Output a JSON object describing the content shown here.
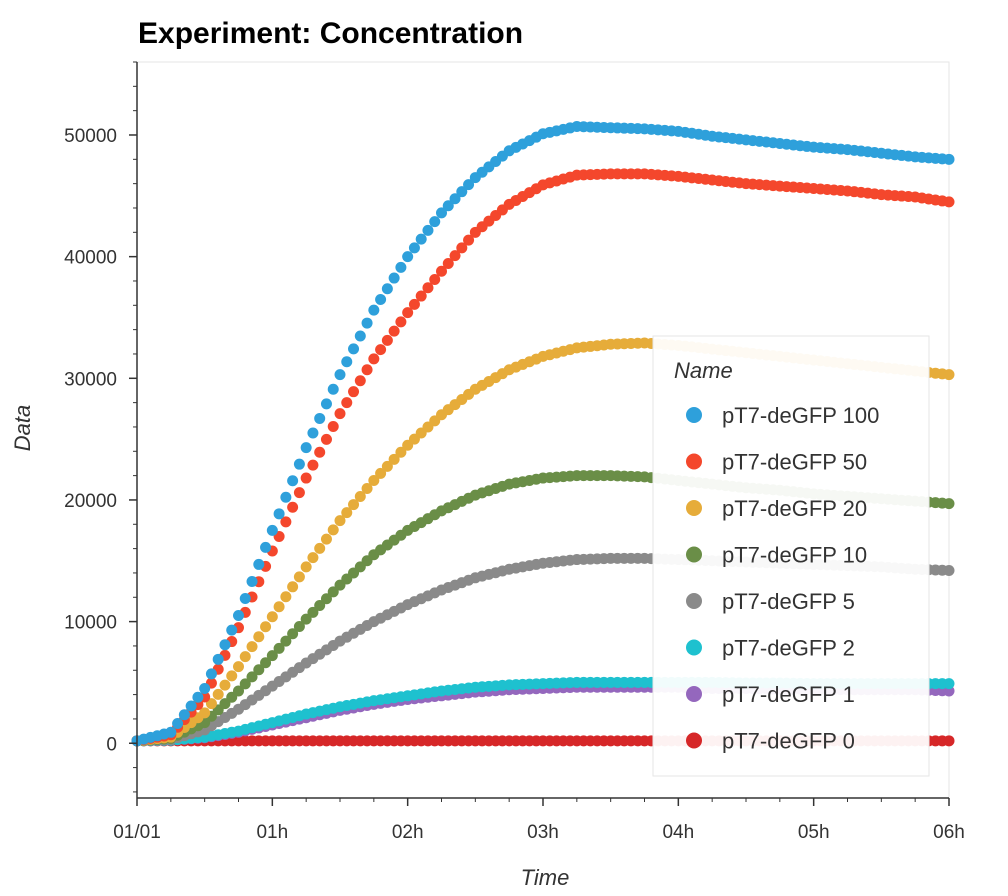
{
  "chart_data": {
    "type": "scatter",
    "title": "Experiment: Concentration",
    "xlabel": "Time",
    "ylabel": "Data",
    "x_unit": "hours",
    "x_ticks": [
      {
        "value": 0,
        "label": "01/01"
      },
      {
        "value": 1,
        "label": "01h"
      },
      {
        "value": 2,
        "label": "02h"
      },
      {
        "value": 3,
        "label": "03h"
      },
      {
        "value": 4,
        "label": "04h"
      },
      {
        "value": 5,
        "label": "05h"
      },
      {
        "value": 6,
        "label": "06h"
      }
    ],
    "y_ticks": [
      0,
      10000,
      20000,
      30000,
      40000,
      50000
    ],
    "xlim": [
      0,
      6
    ],
    "ylim": [
      -4500,
      56000
    ],
    "grid": false,
    "legend": {
      "title": "Name",
      "placement": "lower-right"
    },
    "series": [
      {
        "name": "pT7-deGFP 100",
        "color": "#2ea0db",
        "x": [
          0,
          0.25,
          0.5,
          0.75,
          1,
          1.25,
          1.5,
          1.75,
          2,
          2.25,
          2.5,
          2.75,
          3,
          3.25,
          3.5,
          3.75,
          4,
          4.25,
          4.5,
          4.75,
          5,
          5.25,
          5.5,
          5.75,
          6
        ],
        "y": [
          200,
          900,
          4500,
          10500,
          17500,
          24300,
          30300,
          35600,
          40000,
          43600,
          46500,
          48700,
          50100,
          50700,
          50600,
          50500,
          50300,
          49900,
          49600,
          49300,
          49000,
          48800,
          48500,
          48200,
          48000
        ]
      },
      {
        "name": "pT7-deGFP 50",
        "color": "#f4472c",
        "x": [
          0,
          0.25,
          0.5,
          0.75,
          1,
          1.25,
          1.5,
          1.75,
          2,
          2.25,
          2.5,
          2.75,
          3,
          3.25,
          3.5,
          3.75,
          4,
          4.25,
          4.5,
          4.75,
          5,
          5.25,
          5.5,
          5.75,
          6
        ],
        "y": [
          200,
          700,
          3800,
          9500,
          15800,
          21800,
          27100,
          31600,
          35400,
          38800,
          42000,
          44300,
          45900,
          46700,
          46800,
          46800,
          46600,
          46300,
          46000,
          45800,
          45600,
          45400,
          45100,
          44900,
          44500
        ]
      },
      {
        "name": "pT7-deGFP 20",
        "color": "#e6ac3a",
        "x": [
          0,
          0.25,
          0.5,
          0.75,
          1,
          1.25,
          1.5,
          1.75,
          2,
          2.25,
          2.5,
          2.75,
          3,
          3.25,
          3.5,
          3.75,
          4,
          4.25,
          4.5,
          4.75,
          5,
          5.25,
          5.5,
          5.75,
          6
        ],
        "y": [
          200,
          500,
          2500,
          6300,
          10400,
          14500,
          18300,
          21600,
          24500,
          27000,
          29100,
          30700,
          31800,
          32500,
          32800,
          32900,
          32700,
          32400,
          32100,
          31800,
          31500,
          31200,
          30900,
          30600,
          30300
        ]
      },
      {
        "name": "pT7-deGFP 10",
        "color": "#6a8e47",
        "x": [
          0,
          0.25,
          0.5,
          0.75,
          1,
          1.25,
          1.5,
          1.75,
          2,
          2.25,
          2.5,
          2.75,
          3,
          3.25,
          3.5,
          3.75,
          4,
          4.25,
          4.5,
          4.75,
          5,
          5.25,
          5.5,
          5.75,
          6
        ],
        "y": [
          200,
          400,
          1700,
          4300,
          7200,
          10200,
          13000,
          15500,
          17500,
          19100,
          20400,
          21300,
          21800,
          22000,
          22000,
          21900,
          21600,
          21300,
          21000,
          20800,
          20500,
          20300,
          20100,
          19900,
          19700
        ]
      },
      {
        "name": "pT7-deGFP 5",
        "color": "#8a8a8a",
        "x": [
          0,
          0.25,
          0.5,
          0.75,
          1,
          1.25,
          1.5,
          1.75,
          2,
          2.25,
          2.5,
          2.75,
          3,
          3.25,
          3.5,
          3.75,
          4,
          4.25,
          4.5,
          4.75,
          5,
          5.25,
          5.5,
          5.75,
          6
        ],
        "y": [
          200,
          300,
          1100,
          2800,
          4700,
          6600,
          8400,
          10000,
          11400,
          12600,
          13600,
          14300,
          14800,
          15100,
          15200,
          15200,
          15100,
          15000,
          14900,
          14800,
          14700,
          14600,
          14500,
          14300,
          14200
        ]
      },
      {
        "name": "pT7-deGFP 2",
        "color": "#1ec1cf",
        "x": [
          0,
          0.25,
          0.5,
          0.75,
          1,
          1.25,
          1.5,
          1.75,
          2,
          2.25,
          2.5,
          2.75,
          3,
          3.25,
          3.5,
          3.75,
          4,
          4.25,
          4.5,
          4.75,
          5,
          5.25,
          5.5,
          5.75,
          6
        ],
        "y": [
          200,
          250,
          500,
          1000,
          1700,
          2400,
          3000,
          3500,
          3900,
          4300,
          4600,
          4800,
          4900,
          5000,
          5000,
          5000,
          5000,
          5000,
          4950,
          4950,
          4900,
          4900,
          4900,
          4900,
          4900
        ]
      },
      {
        "name": "pT7-deGFP 1",
        "color": "#9467bd",
        "x": [
          0,
          0.25,
          0.5,
          0.75,
          1,
          1.25,
          1.5,
          1.75,
          2,
          2.25,
          2.5,
          2.75,
          3,
          3.25,
          3.5,
          3.75,
          4,
          4.25,
          4.5,
          4.75,
          5,
          5.25,
          5.5,
          5.75,
          6
        ],
        "y": [
          200,
          250,
          450,
          900,
          1500,
          2100,
          2700,
          3200,
          3600,
          3900,
          4200,
          4400,
          4500,
          4600,
          4600,
          4600,
          4600,
          4500,
          4500,
          4450,
          4450,
          4400,
          4400,
          4400,
          4300
        ]
      },
      {
        "name": "pT7-deGFP 0",
        "color": "#d62728",
        "x": [
          0,
          0.25,
          0.5,
          0.75,
          1,
          1.25,
          1.5,
          1.75,
          2,
          2.25,
          2.5,
          2.75,
          3,
          3.25,
          3.5,
          3.75,
          4,
          4.25,
          4.5,
          4.75,
          5,
          5.25,
          5.5,
          5.75,
          6
        ],
        "y": [
          200,
          200,
          200,
          200,
          200,
          200,
          200,
          200,
          200,
          200,
          200,
          200,
          200,
          200,
          200,
          200,
          200,
          200,
          200,
          200,
          200,
          200,
          200,
          200,
          200
        ]
      }
    ]
  }
}
